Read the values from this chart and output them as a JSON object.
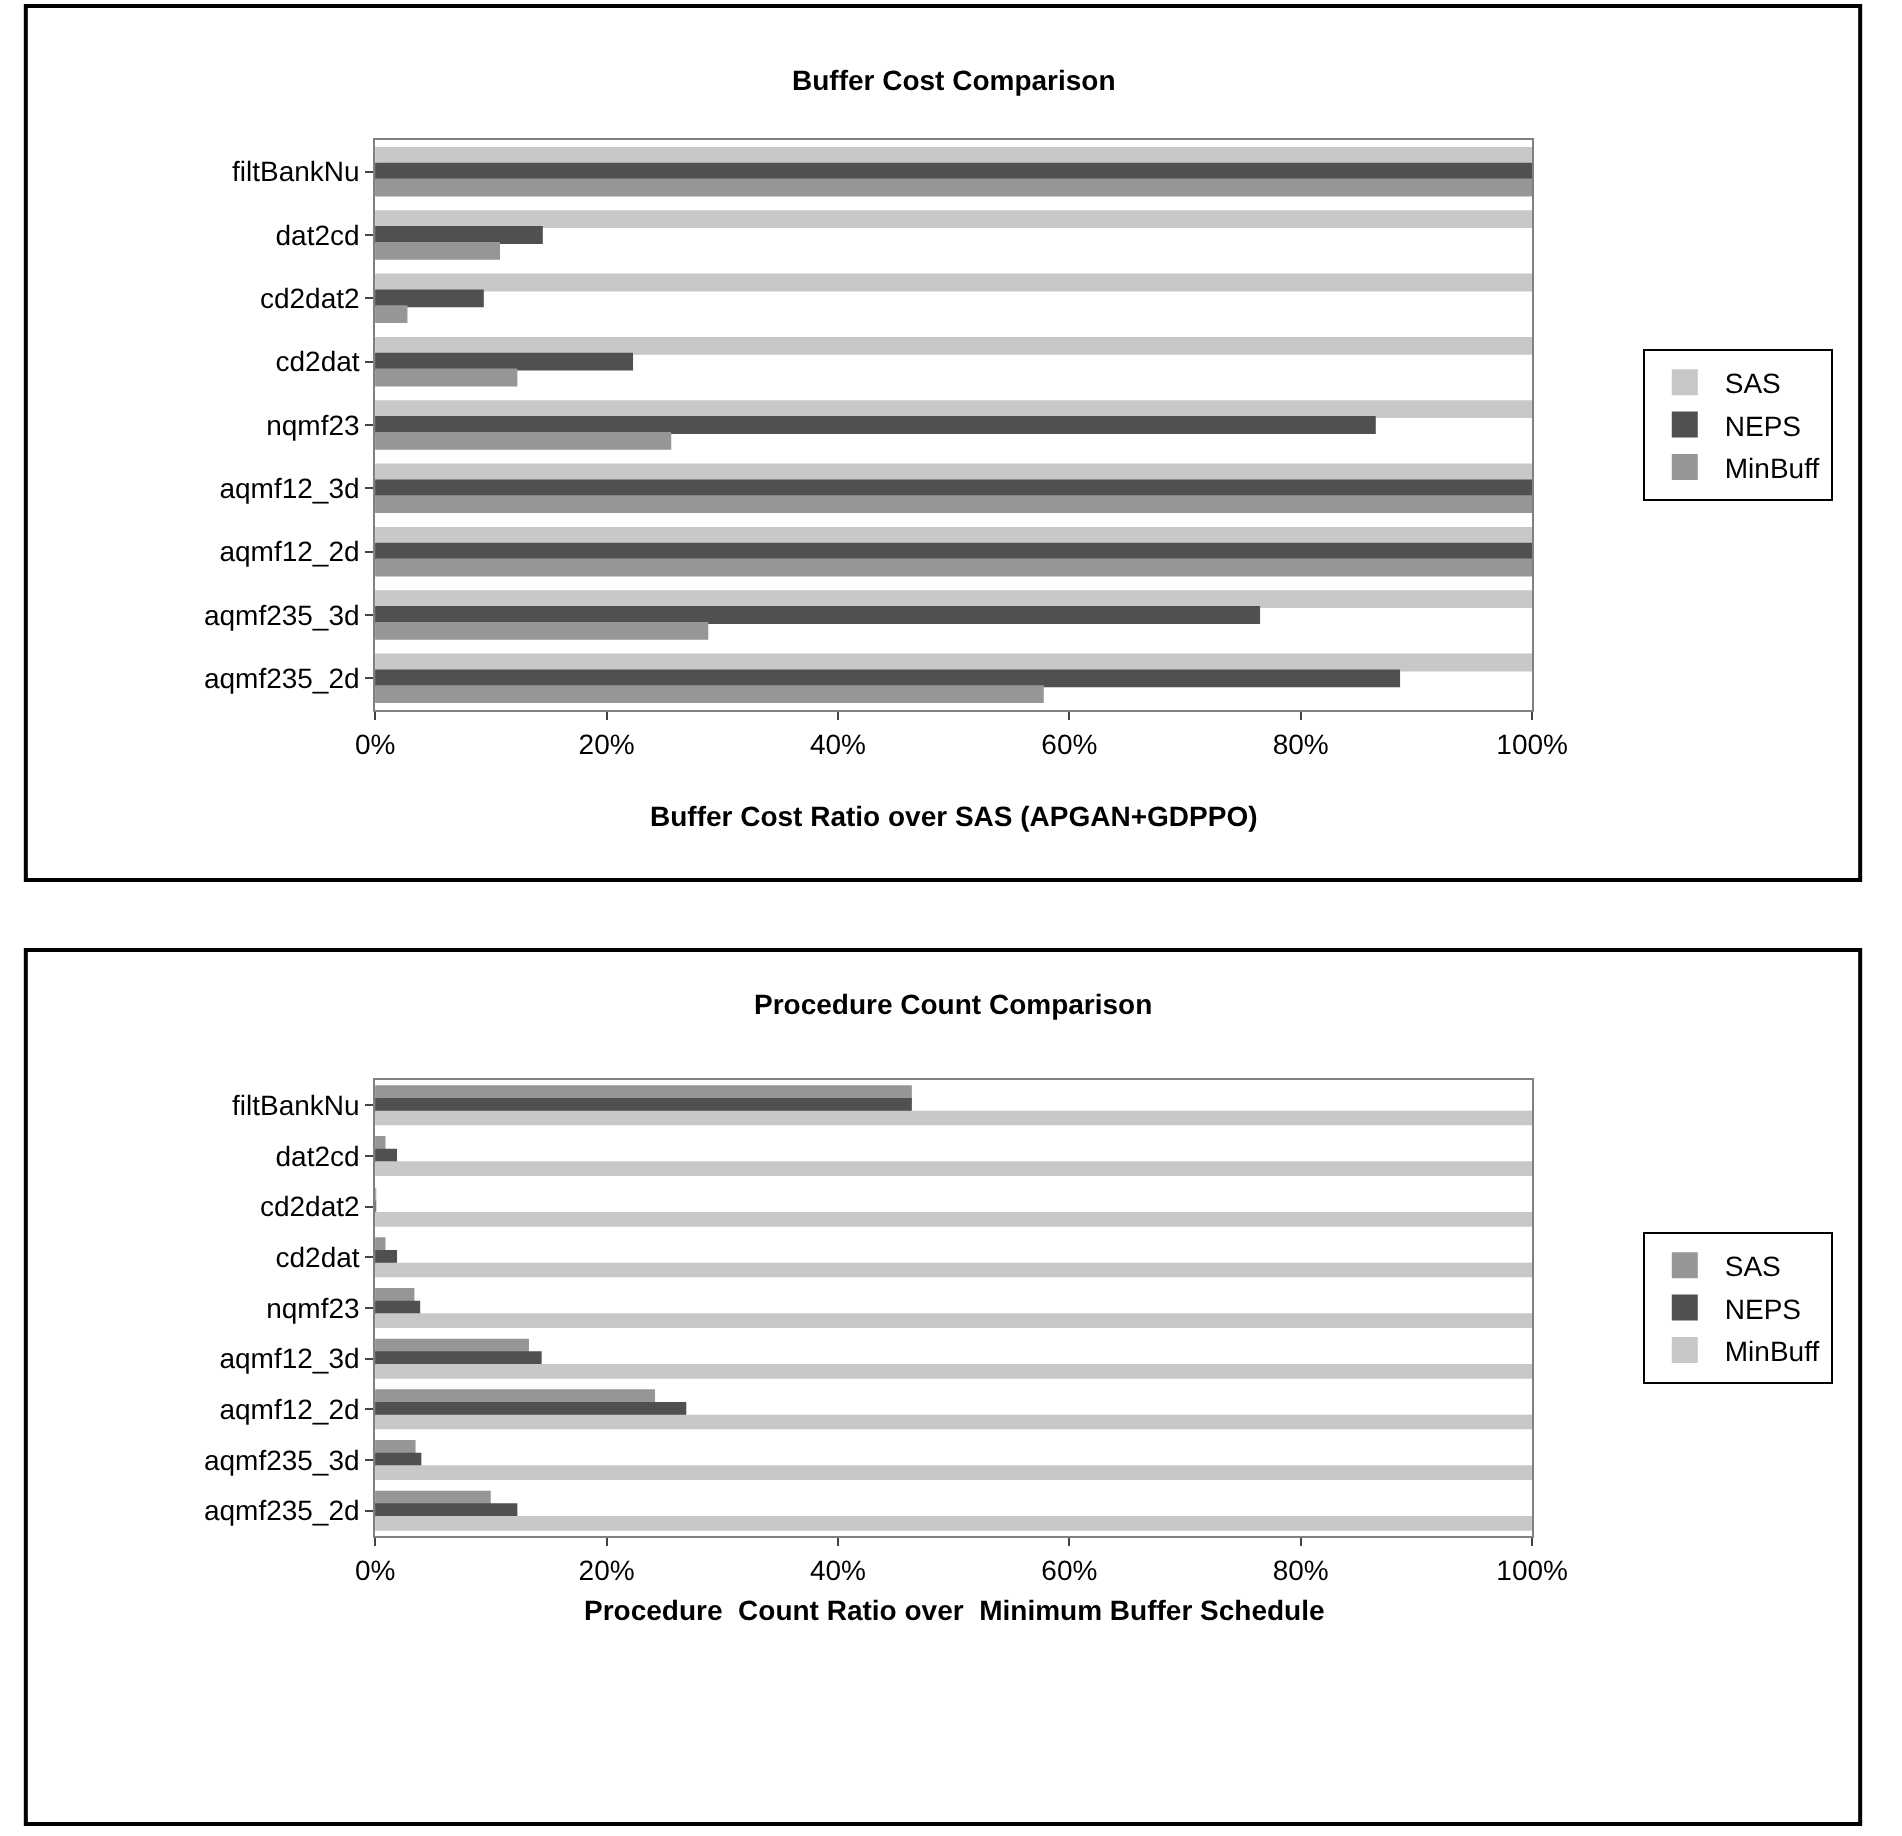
{
  "chart_data": [
    {
      "type": "bar",
      "orientation": "horizontal",
      "title": "Buffer Cost Comparison",
      "xlabel": "Buffer Cost Ratio over SAS (APGAN+GDPPO)",
      "categories": [
        "filtBankNu",
        "dat2cd",
        "cd2dat2",
        "cd2dat",
        "nqmf23",
        "aqmf12_3d",
        "aqmf12_2d",
        "aqmf235_3d",
        "aqmf235_2d"
      ],
      "series": [
        {
          "name": "SAS",
          "color": "#c8c8c8",
          "values": [
            100,
            100,
            100,
            100,
            100,
            100,
            100,
            100,
            100
          ]
        },
        {
          "name": "NEPS",
          "color": "#505050",
          "values": [
            100,
            14.4,
            9.3,
            22.2,
            86.4,
            100,
            100,
            76.4,
            88.5
          ]
        },
        {
          "name": "MinBuff",
          "color": "#969696",
          "values": [
            100,
            10.7,
            2.7,
            12.2,
            25.5,
            100,
            100,
            28.7,
            57.7
          ]
        }
      ],
      "xlim": [
        0,
        100
      ],
      "xticks": [
        {
          "value": 0,
          "label": "0%"
        },
        {
          "value": 20,
          "label": "20%"
        },
        {
          "value": 40,
          "label": "40%"
        },
        {
          "value": 60,
          "label": "60%"
        },
        {
          "value": 80,
          "label": "80%"
        },
        {
          "value": 100,
          "label": "100%"
        }
      ],
      "legend": "right"
    },
    {
      "type": "bar",
      "orientation": "horizontal",
      "title": "Procedure Count Comparison",
      "xlabel": "Procedure  Count Ratio over  Minimum Buffer Schedule",
      "categories": [
        "filtBankNu",
        "dat2cd",
        "cd2dat2",
        "cd2dat",
        "nqmf23",
        "aqmf12_3d",
        "aqmf12_2d",
        "aqmf235_3d",
        "aqmf235_2d"
      ],
      "series": [
        {
          "name": "SAS",
          "color": "#969696",
          "values": [
            46.3,
            0.8,
            0,
            0.8,
            3.3,
            13.2,
            24.1,
            3.4,
            9.9
          ]
        },
        {
          "name": "NEPS",
          "color": "#505050",
          "values": [
            46.3,
            1.8,
            0,
            1.8,
            3.8,
            14.3,
            26.8,
            3.9,
            12.2
          ]
        },
        {
          "name": "MinBuff",
          "color": "#c8c8c8",
          "values": [
            100,
            100,
            100,
            100,
            100,
            100,
            100,
            100,
            100
          ]
        }
      ],
      "xlim": [
        0,
        100
      ],
      "xticks": [
        {
          "value": 0,
          "label": "0%"
        },
        {
          "value": 20,
          "label": "20%"
        },
        {
          "value": 40,
          "label": "40%"
        },
        {
          "value": 60,
          "label": "60%"
        },
        {
          "value": 80,
          "label": "80%"
        },
        {
          "value": 100,
          "label": "100%"
        }
      ],
      "legend": "right"
    }
  ]
}
